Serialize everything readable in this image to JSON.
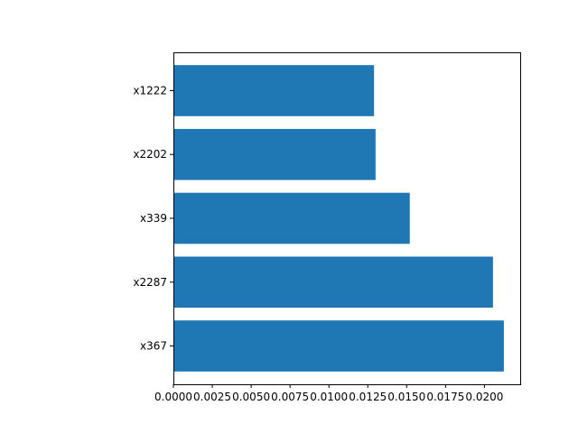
{
  "chart_data": {
    "type": "bar",
    "orientation": "horizontal",
    "categories": [
      "x367",
      "x2287",
      "x339",
      "x2202",
      "x1222"
    ],
    "values": [
      0.02125,
      0.02055,
      0.0152,
      0.013,
      0.0129
    ],
    "xlim": [
      0,
      0.0223
    ],
    "xticks": [
      "0.0000",
      "0.0025",
      "0.0050",
      "0.0075",
      "0.0100",
      "0.0125",
      "0.0150",
      "0.0175",
      "0.0200"
    ],
    "bar_color": "#1f77b4",
    "grid": false,
    "title": "",
    "xlabel": "",
    "ylabel": ""
  }
}
